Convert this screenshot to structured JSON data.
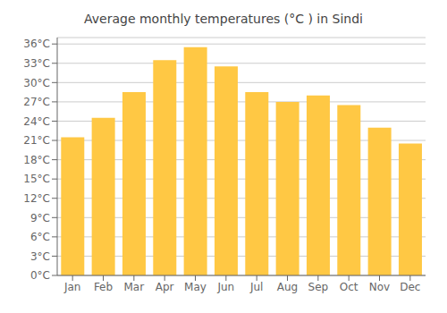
{
  "chart_data": {
    "type": "bar",
    "title": "Average monthly temperatures (°C ) in Sindi",
    "categories": [
      "Jan",
      "Feb",
      "Mar",
      "Apr",
      "May",
      "Jun",
      "Jul",
      "Aug",
      "Sep",
      "Oct",
      "Nov",
      "Dec"
    ],
    "values": [
      21.5,
      24.5,
      28.5,
      33.5,
      35.5,
      32.5,
      28.5,
      27.0,
      28.0,
      26.5,
      23.0,
      20.5
    ],
    "color": "#FFC844",
    "ylim": [
      0,
      37
    ],
    "yticks": [
      {
        "value": 0,
        "label": "0°C"
      },
      {
        "value": 3,
        "label": "3°C"
      },
      {
        "value": 6,
        "label": "6°C"
      },
      {
        "value": 9,
        "label": "9°C"
      },
      {
        "value": 12,
        "label": "12°C"
      },
      {
        "value": 15,
        "label": "15°C"
      },
      {
        "value": 18,
        "label": "18°C"
      },
      {
        "value": 21,
        "label": "21°C"
      },
      {
        "value": 24,
        "label": "24°C"
      },
      {
        "value": 27,
        "label": "27°C"
      },
      {
        "value": 30,
        "label": "30°C"
      },
      {
        "value": 33,
        "label": "33°C"
      },
      {
        "value": 36,
        "label": "36°C"
      }
    ],
    "grid": true
  }
}
